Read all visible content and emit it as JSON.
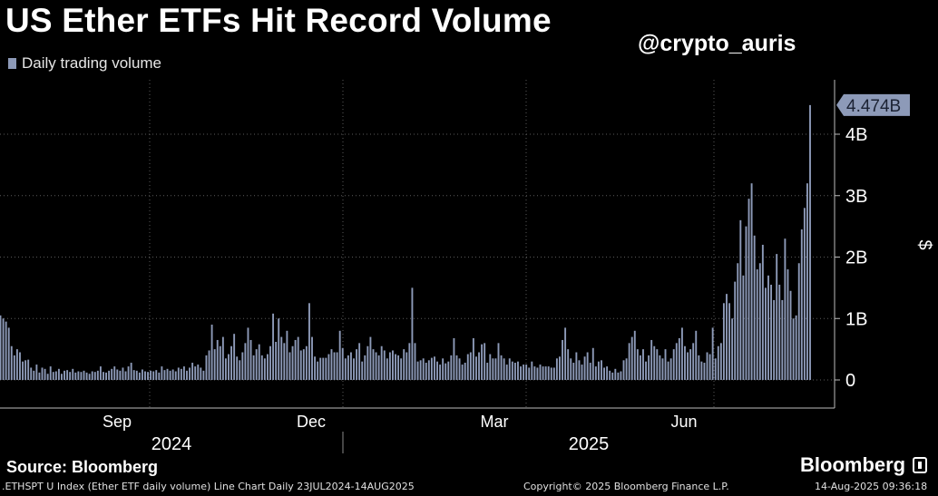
{
  "title": "US Ether ETFs Hit Record Volume",
  "handle": "@crypto_auris",
  "legend": "Daily trading volume",
  "source": "Source: Bloomberg",
  "brand": "Bloomberg",
  "footer": {
    "left": ".ETHSPT U Index (Ether ETF daily volume) Line Chart  Daily 23JUL2024-14AUG2025",
    "center": "Copyright© 2025 Bloomberg Finance L.P.",
    "right": "14-Aug-2025 09:36:18"
  },
  "colors": {
    "bar": "#8d9ab8",
    "grid": "#5a5a5a",
    "label_bg": "#8d9ab8"
  },
  "chart_data": {
    "type": "bar",
    "title": "US Ether ETFs Hit Record Volume",
    "ylabel": "$",
    "ylim": [
      0,
      4.5
    ],
    "y_unit": "B",
    "yticks": [
      0,
      1,
      2,
      3,
      4
    ],
    "ytick_labels": [
      "0",
      "1B",
      "2B",
      "3B",
      "4B"
    ],
    "x_month_labels": [
      "Sep",
      "Dec",
      "Mar",
      "Jun"
    ],
    "x_year_labels": [
      "2024",
      "2025"
    ],
    "last_value_label": "4.474B",
    "grid": true,
    "legend_position": "top-left",
    "series": [
      {
        "name": "Daily trading volume",
        "values": [
          1.05,
          1.0,
          0.95,
          0.85,
          0.55,
          0.4,
          0.5,
          0.45,
          0.3,
          0.32,
          0.33,
          0.2,
          0.15,
          0.25,
          0.12,
          0.2,
          0.18,
          0.1,
          0.22,
          0.13,
          0.14,
          0.18,
          0.1,
          0.15,
          0.16,
          0.13,
          0.18,
          0.12,
          0.14,
          0.13,
          0.15,
          0.12,
          0.1,
          0.14,
          0.13,
          0.15,
          0.22,
          0.13,
          0.12,
          0.15,
          0.18,
          0.22,
          0.17,
          0.15,
          0.2,
          0.14,
          0.22,
          0.28,
          0.16,
          0.15,
          0.12,
          0.17,
          0.14,
          0.13,
          0.15,
          0.14,
          0.16,
          0.12,
          0.22,
          0.16,
          0.18,
          0.15,
          0.17,
          0.14,
          0.2,
          0.18,
          0.22,
          0.15,
          0.2,
          0.28,
          0.22,
          0.25,
          0.2,
          0.15,
          0.4,
          0.48,
          0.9,
          0.5,
          0.65,
          0.55,
          0.7,
          0.35,
          0.42,
          0.55,
          0.75,
          0.38,
          0.32,
          0.45,
          0.6,
          0.85,
          0.65,
          0.4,
          0.5,
          0.58,
          0.4,
          0.35,
          0.42,
          0.55,
          1.08,
          0.62,
          1.0,
          0.7,
          0.6,
          0.8,
          0.45,
          0.55,
          0.65,
          0.7,
          0.48,
          0.5,
          0.55,
          1.25,
          0.7,
          0.38,
          0.3,
          0.36,
          0.36,
          0.36,
          0.42,
          0.5,
          0.45,
          0.45,
          0.8,
          0.52,
          0.35,
          0.4,
          0.45,
          0.35,
          0.5,
          0.6,
          0.3,
          0.4,
          0.55,
          0.7,
          0.5,
          0.45,
          0.4,
          0.55,
          0.48,
          0.35,
          0.45,
          0.48,
          0.42,
          0.4,
          0.35,
          0.5,
          0.45,
          0.6,
          1.5,
          0.6,
          0.3,
          0.32,
          0.35,
          0.28,
          0.32,
          0.36,
          0.38,
          0.3,
          0.25,
          0.35,
          0.27,
          0.3,
          0.4,
          0.68,
          0.4,
          0.35,
          0.25,
          0.28,
          0.42,
          0.45,
          0.68,
          0.38,
          0.45,
          0.58,
          0.6,
          0.28,
          0.42,
          0.35,
          0.35,
          0.6,
          0.4,
          0.35,
          0.25,
          0.35,
          0.3,
          0.28,
          0.3,
          0.22,
          0.25,
          0.25,
          0.2,
          0.3,
          0.22,
          0.2,
          0.25,
          0.22,
          0.22,
          0.22,
          0.2,
          0.2,
          0.35,
          0.38,
          0.65,
          0.85,
          0.5,
          0.35,
          0.28,
          0.45,
          0.32,
          0.25,
          0.38,
          0.45,
          0.28,
          0.52,
          0.22,
          0.3,
          0.32,
          0.2,
          0.22,
          0.15,
          0.12,
          0.18,
          0.12,
          0.14,
          0.32,
          0.35,
          0.6,
          0.7,
          0.8,
          0.5,
          0.4,
          0.5,
          0.3,
          0.4,
          0.65,
          0.55,
          0.5,
          0.4,
          0.35,
          0.5,
          0.3,
          0.35,
          0.5,
          0.6,
          0.68,
          0.85,
          0.55,
          0.45,
          0.5,
          0.6,
          0.8,
          0.4,
          0.3,
          0.28,
          0.45,
          0.42,
          0.85,
          0.35,
          0.55,
          0.6,
          1.25,
          1.4,
          1.25,
          1.0,
          1.6,
          1.9,
          2.6,
          1.7,
          2.5,
          2.95,
          3.2,
          2.35,
          1.8,
          1.9,
          2.2,
          1.5,
          1.7,
          1.55,
          1.3,
          2.05,
          1.55,
          1.3,
          2.3,
          1.8,
          1.45,
          1.0,
          1.05,
          1.9,
          2.45,
          2.8,
          3.2,
          4.474
        ]
      }
    ]
  }
}
